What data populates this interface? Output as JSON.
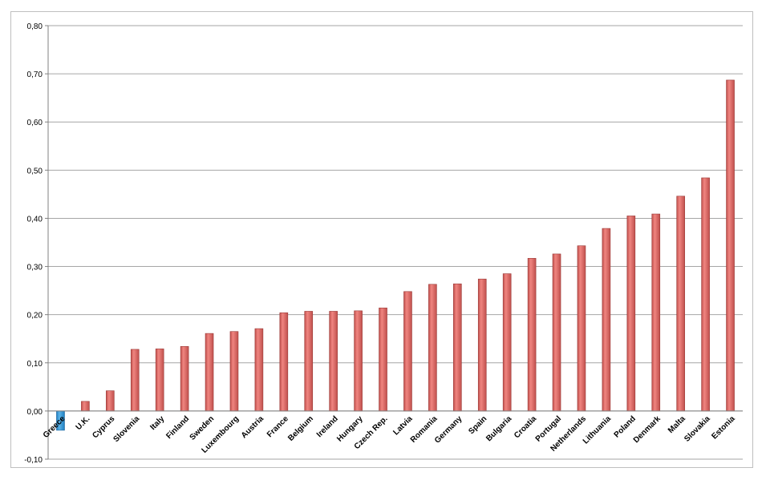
{
  "chart_data": {
    "type": "bar",
    "title": "",
    "xlabel": "",
    "ylabel": "",
    "ylim": [
      -0.1,
      0.8
    ],
    "yticks": [
      "-0,10",
      "0,00",
      "0,10",
      "0,20",
      "0,30",
      "0,40",
      "0,50",
      "0,60",
      "0,70",
      "0,80"
    ],
    "ytick_values": [
      -0.1,
      0.0,
      0.1,
      0.2,
      0.3,
      0.4,
      0.5,
      0.6,
      0.7,
      0.8
    ],
    "grid": true,
    "categories": [
      "Greece",
      "U.K.",
      "Cyprus",
      "Slovenia",
      "Italy",
      "Finland",
      "Sweden",
      "Luxembourg",
      "Austria",
      "France",
      "Belgium",
      "Ireland",
      "Hungary",
      "Czech Rep.",
      "Latvia",
      "Romania",
      "Germany",
      "Spain",
      "Bulgaria",
      "Croatia",
      "Portugal",
      "Netherlands",
      "Lithuania",
      "Poland",
      "Denmark",
      "Malta",
      "Slovakia",
      "Estonia"
    ],
    "values": [
      -0.04,
      0.02,
      0.042,
      0.128,
      0.129,
      0.134,
      0.161,
      0.165,
      0.171,
      0.204,
      0.207,
      0.207,
      0.208,
      0.214,
      0.248,
      0.263,
      0.264,
      0.274,
      0.285,
      0.317,
      0.326,
      0.343,
      0.379,
      0.405,
      0.409,
      0.446,
      0.484,
      0.687
    ],
    "colors": {
      "positive": "#c0504d",
      "positive_light": "#f08580",
      "negative": "#1f7fc0",
      "negative_light": "#5bb3e8",
      "grid": "#a6a6a6"
    }
  }
}
